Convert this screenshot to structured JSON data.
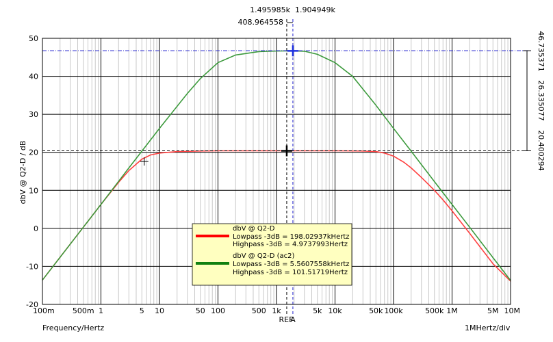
{
  "chart_data": {
    "type": "line",
    "x_scale": "log",
    "xlim": [
      0.1,
      10000000
    ],
    "ylim": [
      -20,
      50
    ],
    "xlabel": "Frequency/Hertz",
    "ylabel": "dbV @ Q2-D / dB",
    "x_div_label": "1MHertz/div",
    "x_ticks": [
      {
        "v": 0.1,
        "label": "100m"
      },
      {
        "v": 0.5,
        "label": "500m"
      },
      {
        "v": 1,
        "label": "1"
      },
      {
        "v": 5,
        "label": "5"
      },
      {
        "v": 10,
        "label": "10"
      },
      {
        "v": 50,
        "label": "50"
      },
      {
        "v": 100,
        "label": "100"
      },
      {
        "v": 500,
        "label": "500"
      },
      {
        "v": 1000,
        "label": "1k"
      },
      {
        "v": 5000,
        "label": "5k"
      },
      {
        "v": 10000,
        "label": "10k"
      },
      {
        "v": 50000,
        "label": "50k"
      },
      {
        "v": 100000,
        "label": "100k"
      },
      {
        "v": 500000,
        "label": "500k"
      },
      {
        "v": 1000000,
        "label": "1M"
      },
      {
        "v": 5000000,
        "label": "5M"
      },
      {
        "v": 10000000,
        "label": "10M"
      }
    ],
    "y_ticks": [
      {
        "v": 50,
        "label": "50"
      },
      {
        "v": 40,
        "label": "40"
      },
      {
        "v": 30,
        "label": "30"
      },
      {
        "v": 20,
        "label": "20"
      },
      {
        "v": 10,
        "label": "10"
      },
      {
        "v": 0,
        "label": "0"
      },
      {
        "v": -10,
        "label": "-10"
      },
      {
        "v": -20,
        "label": "-20"
      }
    ],
    "cursors": {
      "ref": {
        "x": 1495.985,
        "label": "REF"
      },
      "a": {
        "x": 1904.949,
        "label": "A"
      },
      "ref_x_label": "1.495985k",
      "a_x_label": "1.904949k",
      "delta_x_label": "408.964558",
      "ref_y": 20.400294,
      "a_y": 46.735371,
      "ref_y_label": "20.400294",
      "a_y_label": "46.735371",
      "delta_y_label": "26.335077"
    },
    "series": [
      {
        "name": "dbV @ Q2-D",
        "color": "#ff4040",
        "lowpass_label": "Lowpass -3dB = 198.02937kHertz",
        "highpass_label": "Highpass -3dB = 4.9737993Hertz",
        "x": [
          0.1,
          0.2,
          0.5,
          1,
          2,
          3,
          5,
          7,
          10,
          20,
          50,
          100,
          1000,
          10000,
          30000,
          50000,
          70000,
          100000,
          150000,
          200000,
          300000,
          500000,
          700000,
          1000000,
          2000000,
          5000000,
          10000000
        ],
        "y": [
          -13.6,
          -7.6,
          0.3,
          6.3,
          12.1,
          15.2,
          18.2,
          19.3,
          19.8,
          20.2,
          20.35,
          20.4,
          20.4,
          20.4,
          20.35,
          20.2,
          19.8,
          19.0,
          17.4,
          15.9,
          13.4,
          10.0,
          7.5,
          4.6,
          -1.3,
          -9.3,
          -13.9
        ]
      },
      {
        "name": "dbV @ Q2-D (ac2)",
        "color": "#3c9a3c",
        "lowpass_label": "Lowpass -3dB = 5.5607558kHertz",
        "highpass_label": "Highpass -3dB = 101.51719Hertz",
        "x": [
          0.1,
          0.5,
          1,
          3,
          10,
          30,
          50,
          100,
          200,
          500,
          1000,
          1900,
          3000,
          5000,
          10000,
          20000,
          50000,
          100000,
          200000,
          500000,
          1000000,
          2000000,
          5000000,
          10000000
        ],
        "y": [
          -13.6,
          0.3,
          6.3,
          15.9,
          26.3,
          35.5,
          39.4,
          43.6,
          45.6,
          46.5,
          46.65,
          46.7,
          46.6,
          45.8,
          43.6,
          40.0,
          32.4,
          26.3,
          20.3,
          12.3,
          6.3,
          0.3,
          -7.7,
          -13.7
        ]
      }
    ],
    "markers": [
      {
        "series": 0,
        "x": 5.5,
        "y": 17.6
      },
      {
        "series": 0,
        "x": 1495.985,
        "y": 20.4
      },
      {
        "series": 1,
        "x": 1904.949,
        "y": 46.7
      }
    ],
    "grid": true,
    "legend": "bottom-center"
  }
}
